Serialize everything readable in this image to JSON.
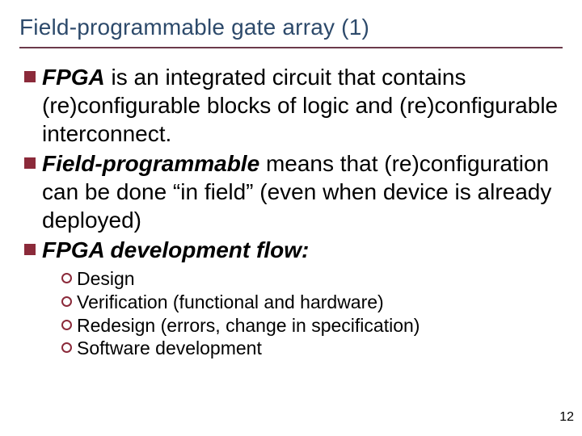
{
  "colors": {
    "title_color": "#2d4a6b",
    "underline_color": "#6b3a4a",
    "square_bullet_color": "#8b2a3a",
    "ring_bullet_color": "#8b2a3a",
    "text_color": "#000000",
    "background": "#ffffff"
  },
  "typography": {
    "title_fontsize": 28,
    "body_fontsize": 28,
    "sub_fontsize": 23,
    "pagenum_fontsize": 16,
    "font_family": "Arial"
  },
  "title": "Field-programmable gate array (1)",
  "bullets": {
    "b1": {
      "strong": "FPGA",
      "rest": " is an integrated circuit that contains (re)configurable blocks of logic and (re)configurable interconnect."
    },
    "b2": {
      "strong": "Field-programmable",
      "rest": " means that (re)configuration can be done “in field” (even when device is already deployed)"
    },
    "b3": {
      "strong": "FPGA development flow:",
      "rest": ""
    }
  },
  "sub_bullets": {
    "s1": "Design",
    "s2": "Verification (functional and hardware)",
    "s3": "Redesign (errors, change in specification)",
    "s4": "Software development"
  },
  "page_number": "12"
}
